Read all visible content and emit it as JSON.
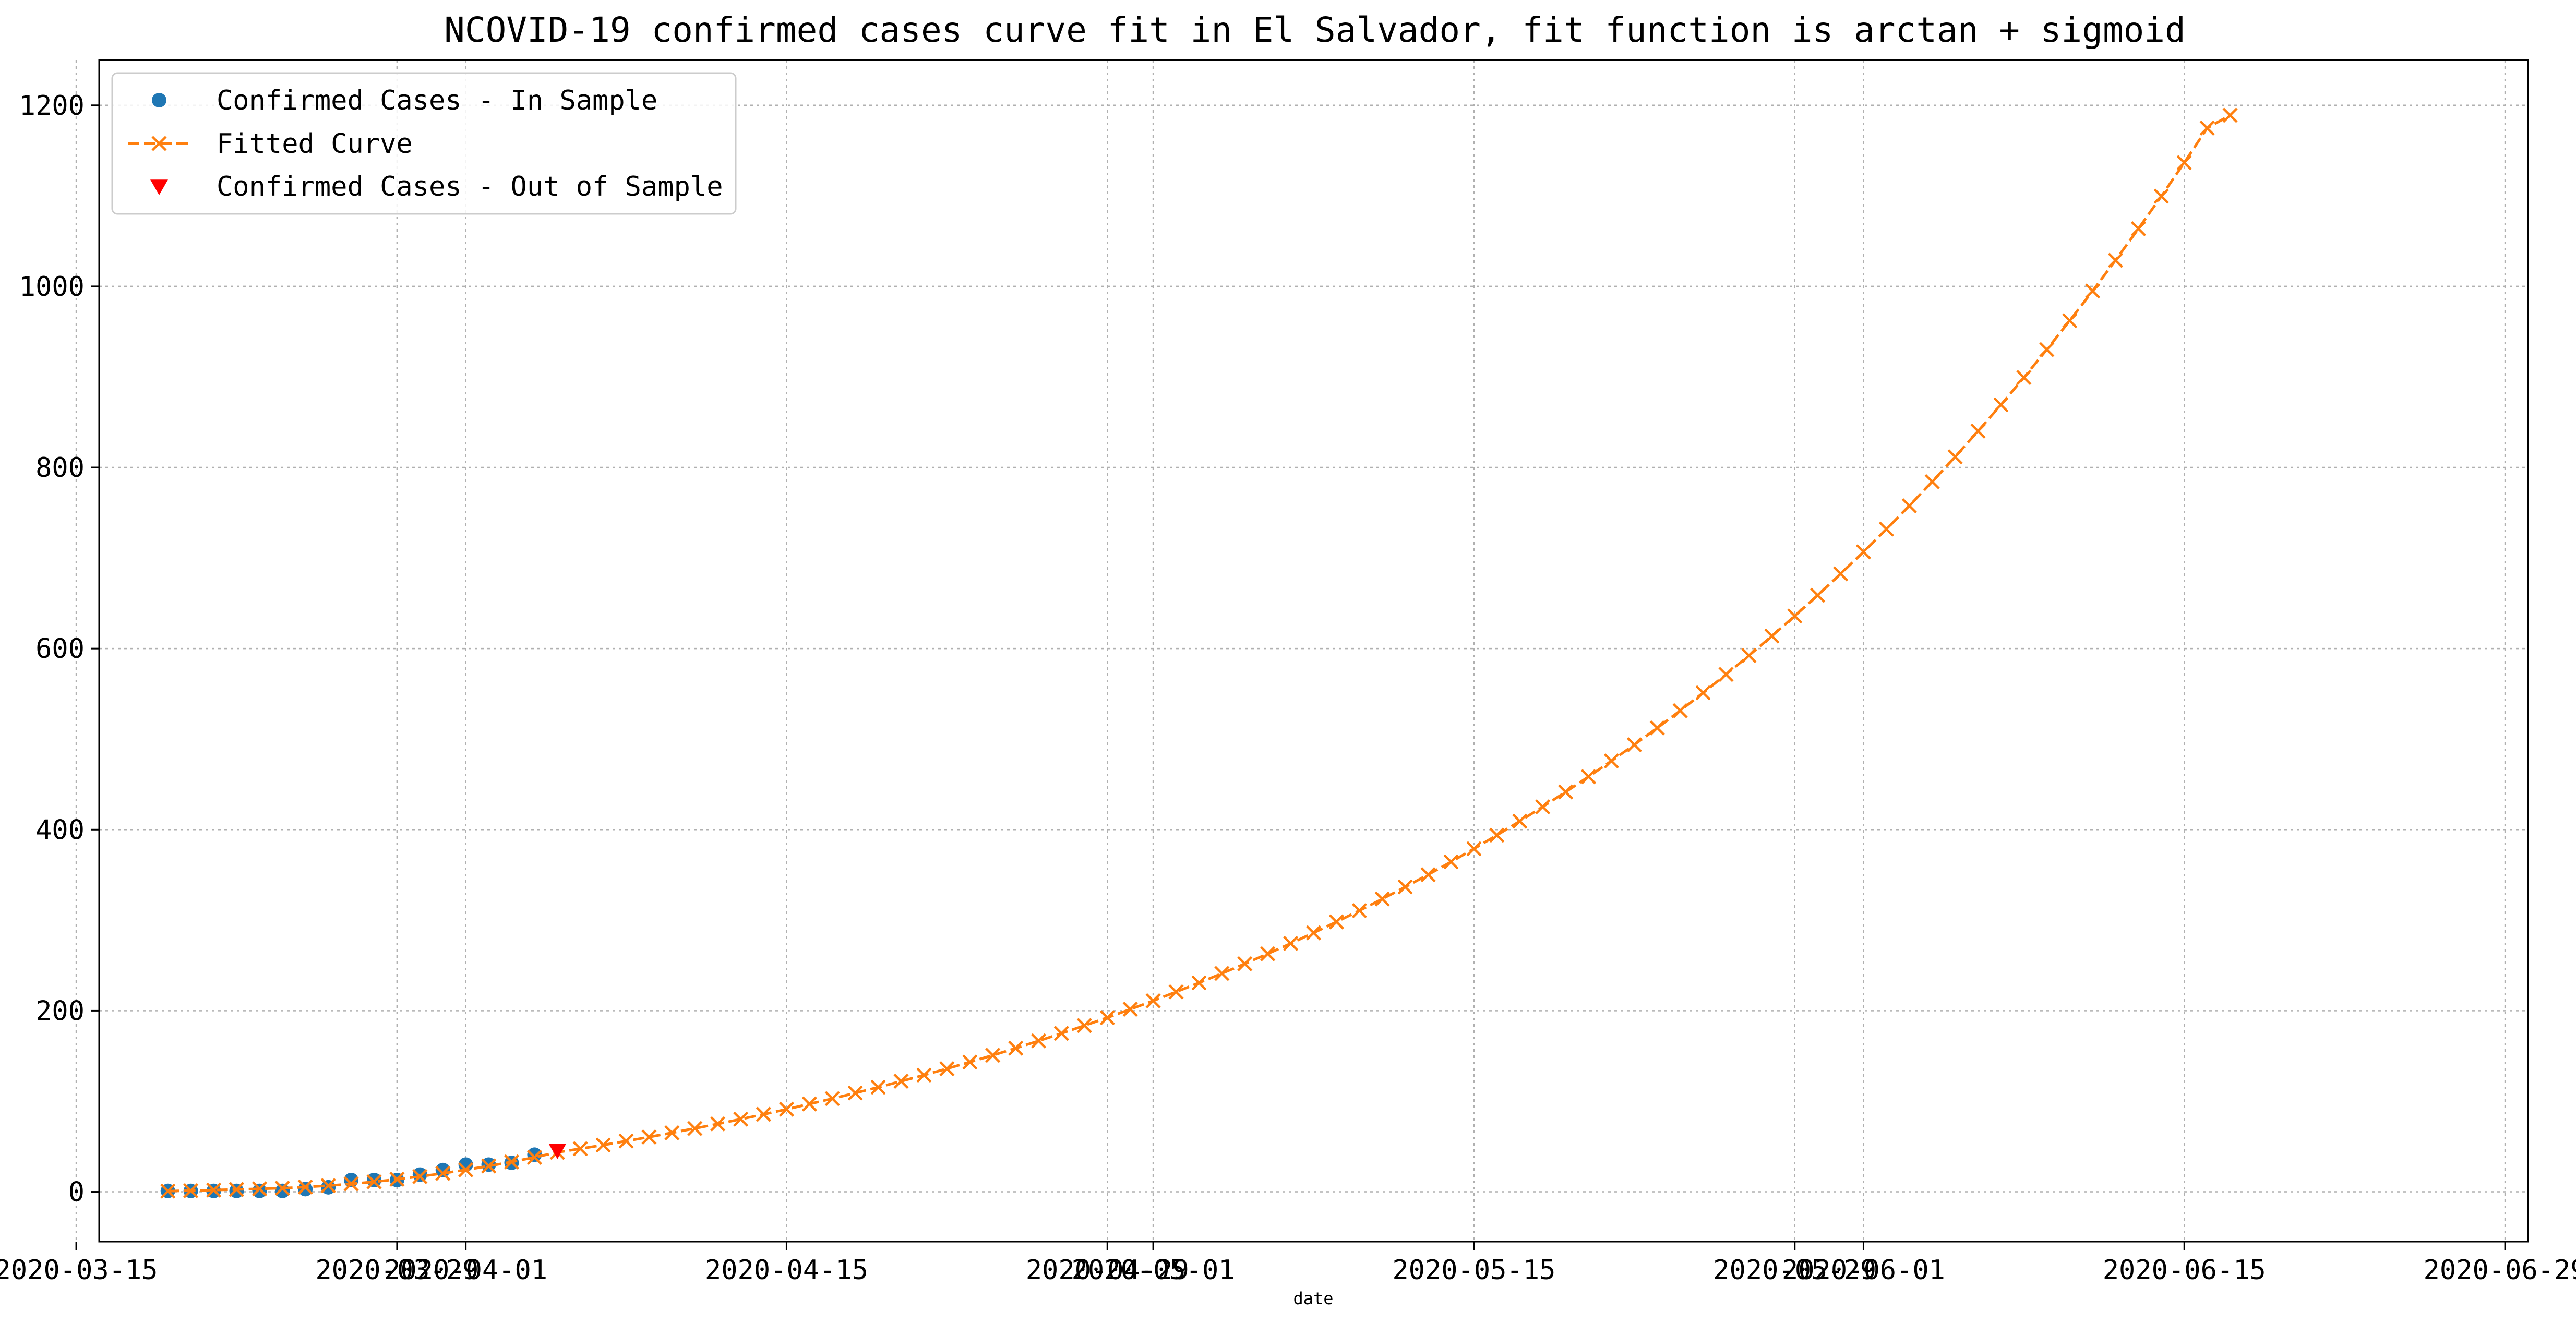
{
  "chart_data": {
    "type": "line",
    "title": "NCOVID-19 confirmed cases curve fit in El Salvador, fit function is arctan + sigmoid",
    "xlabel": "date",
    "ylabel": "",
    "x_axis_type": "date",
    "xlim": [
      "2020-03-16",
      "2020-06-30"
    ],
    "ylim": [
      -55,
      1250
    ],
    "grid": true,
    "legend_position": "top-left",
    "x_ticks": [
      {
        "date": "2020-03-15",
        "label": "2020-03-15"
      },
      {
        "date": "2020-03-29",
        "label": "2020-03-29"
      },
      {
        "date": "2020-04-01",
        "label": "2020-04-01"
      },
      {
        "date": "2020-04-15",
        "label": "2020-04-15"
      },
      {
        "date": "2020-04-29",
        "label": "2020-04-29"
      },
      {
        "date": "2020-05-01",
        "label": "2020-05-01"
      },
      {
        "date": "2020-05-15",
        "label": "2020-05-15"
      },
      {
        "date": "2020-05-29",
        "label": "2020-05-29"
      },
      {
        "date": "2020-06-01",
        "label": "2020-06-01"
      },
      {
        "date": "2020-06-15",
        "label": "2020-06-15"
      },
      {
        "date": "2020-06-29",
        "label": "2020-06-29"
      }
    ],
    "y_ticks": [
      0,
      200,
      400,
      600,
      800,
      1000,
      1200
    ],
    "series": [
      {
        "name": "Confirmed Cases - In Sample",
        "kind": "scatter",
        "marker": "circle",
        "color": "#1f77b4",
        "points": [
          {
            "x": "2020-03-19",
            "y": 1
          },
          {
            "x": "2020-03-20",
            "y": 1
          },
          {
            "x": "2020-03-21",
            "y": 1
          },
          {
            "x": "2020-03-22",
            "y": 1
          },
          {
            "x": "2020-03-23",
            "y": 1
          },
          {
            "x": "2020-03-24",
            "y": 1
          },
          {
            "x": "2020-03-25",
            "y": 3
          },
          {
            "x": "2020-03-26",
            "y": 5
          },
          {
            "x": "2020-03-27",
            "y": 13
          },
          {
            "x": "2020-03-28",
            "y": 13
          },
          {
            "x": "2020-03-29",
            "y": 13
          },
          {
            "x": "2020-03-30",
            "y": 19
          },
          {
            "x": "2020-03-31",
            "y": 24
          },
          {
            "x": "2020-04-01",
            "y": 30
          },
          {
            "x": "2020-04-02",
            "y": 30
          },
          {
            "x": "2020-04-03",
            "y": 32
          },
          {
            "x": "2020-04-04",
            "y": 41
          }
        ]
      },
      {
        "name": "Fitted Curve",
        "kind": "line",
        "marker": "x",
        "linestyle": "dashed",
        "color": "#ff7f0e",
        "start": "2020-03-19",
        "step_days": 1,
        "values": [
          0.7,
          1.3,
          1.9,
          2.6,
          3.3,
          4.0,
          5.2,
          6.8,
          8.8,
          11.1,
          13.8,
          16.9,
          20.4,
          24.3,
          28.5,
          33.0,
          38.1,
          43.6,
          47.6,
          51.7,
          56.0,
          60.5,
          65.2,
          70.0,
          75.0,
          80.2,
          85.6,
          91.2,
          97.0,
          102.9,
          109.1,
          115.5,
          122.1,
          128.9,
          136.0,
          143.3,
          150.8,
          158.6,
          166.7,
          175.0,
          183.6,
          192.4,
          201.6,
          211.0,
          220.8,
          230.8,
          241.2,
          251.9,
          262.9,
          274.3,
          286.0,
          298.1,
          310.6,
          323.4,
          336.7,
          350.3,
          364.4,
          378.9,
          393.9,
          409.3,
          425.2,
          441.6,
          458.5,
          475.9,
          493.8,
          512.3,
          531.4,
          551.1,
          571.4,
          592.3,
          613.8,
          636.0,
          658.9,
          682.5,
          706.8,
          731.9,
          757.7,
          784.3,
          811.8,
          840.1,
          869.2,
          899.3,
          930.2,
          962.1,
          994.9,
          1028.8,
          1063.7,
          1099.6,
          1136.6,
          1174.8,
          1189.0
        ]
      },
      {
        "name": "Confirmed Cases - Out of Sample",
        "kind": "scatter",
        "marker": "triangle-down",
        "color": "#ff0000",
        "points": [
          {
            "x": "2020-04-05",
            "y": 46
          }
        ]
      }
    ]
  }
}
